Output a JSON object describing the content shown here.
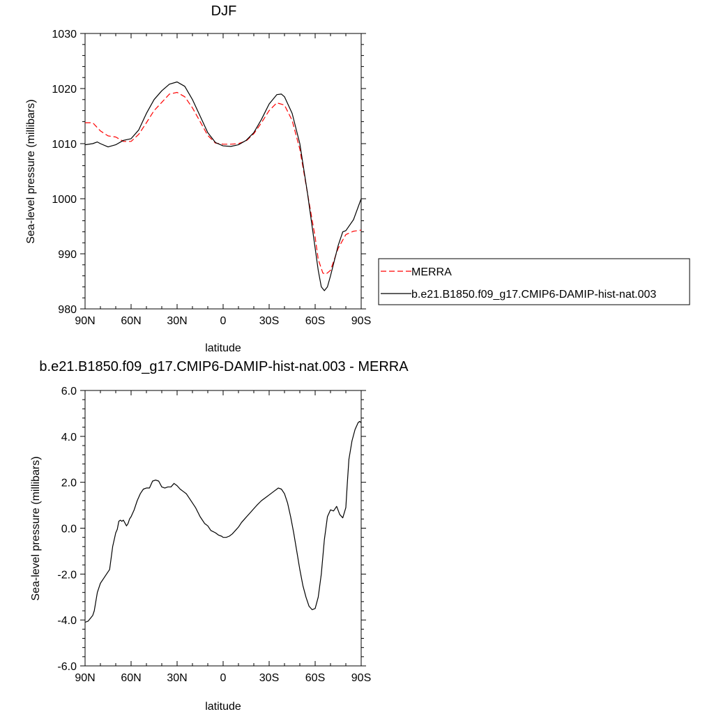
{
  "chart_data": [
    {
      "type": "line",
      "title": "DJF",
      "xlabel": "latitude",
      "ylabel": "Sea-level pressure (millibars)",
      "xlim": [
        90,
        -90
      ],
      "ylim": [
        980,
        1030
      ],
      "xticks": [
        {
          "value": 90,
          "label": "90N"
        },
        {
          "value": 60,
          "label": "60N"
        },
        {
          "value": 30,
          "label": "30N"
        },
        {
          "value": 0,
          "label": "0"
        },
        {
          "value": -30,
          "label": "30S"
        },
        {
          "value": -60,
          "label": "60S"
        },
        {
          "value": -90,
          "label": "90S"
        }
      ],
      "yticks": [
        {
          "value": 980,
          "label": "980"
        },
        {
          "value": 990,
          "label": "990"
        },
        {
          "value": 1000,
          "label": "1000"
        },
        {
          "value": 1010,
          "label": "1010"
        },
        {
          "value": 1020,
          "label": "1020"
        },
        {
          "value": 1030,
          "label": "1030"
        }
      ],
      "legend_position": "right",
      "series": [
        {
          "name": "MERRA",
          "color": "#ff0000",
          "style": "dashed",
          "x": [
            90,
            85,
            80,
            75,
            70,
            65,
            60,
            55,
            50,
            45,
            40,
            35,
            30,
            25,
            20,
            15,
            10,
            5,
            0,
            -5,
            -10,
            -15,
            -20,
            -25,
            -30,
            -35,
            -40,
            -45,
            -50,
            -55,
            -60,
            -62,
            -65,
            -67,
            -70,
            -75,
            -80,
            -85,
            -90
          ],
          "y": [
            1013.8,
            1013.8,
            1012.3,
            1011.4,
            1011.2,
            1010.4,
            1010.4,
            1011.7,
            1013.8,
            1016.0,
            1017.5,
            1019.0,
            1019.3,
            1018.5,
            1016.5,
            1014.0,
            1011.5,
            1010.1,
            1009.9,
            1009.9,
            1010.0,
            1010.5,
            1011.8,
            1013.8,
            1016.0,
            1017.4,
            1017.0,
            1014.2,
            1009.0,
            1001.0,
            993.0,
            989.0,
            986.5,
            986.3,
            987.0,
            991.0,
            993.5,
            994.1,
            994.3
          ]
        },
        {
          "name": "b.e21.B1850.f09_g17.CMIP6-DAMIP-hist-nat.003",
          "color": "#000000",
          "style": "solid",
          "x": [
            90,
            85,
            82,
            80,
            75,
            70,
            65,
            60,
            55,
            50,
            45,
            40,
            35,
            30,
            25,
            20,
            15,
            10,
            5,
            0,
            -5,
            -10,
            -15,
            -20,
            -25,
            -30,
            -35,
            -38,
            -40,
            -45,
            -50,
            -55,
            -60,
            -62,
            -64,
            -66,
            -68,
            -70,
            -75,
            -78,
            -80,
            -85,
            -90
          ],
          "y": [
            1009.8,
            1010.0,
            1010.3,
            1010.0,
            1009.4,
            1009.8,
            1010.6,
            1010.9,
            1012.5,
            1015.5,
            1018.0,
            1019.6,
            1020.8,
            1021.2,
            1020.4,
            1018.0,
            1015.0,
            1012.0,
            1010.2,
            1009.6,
            1009.5,
            1009.8,
            1010.6,
            1012.0,
            1014.4,
            1017.2,
            1018.9,
            1019.0,
            1018.5,
            1015.5,
            1010.0,
            1001.0,
            991.0,
            987.0,
            984.0,
            983.3,
            984.0,
            986.0,
            991.5,
            994.0,
            994.2,
            996.2,
            1000.0
          ]
        }
      ]
    },
    {
      "type": "line",
      "title": "b.e21.B1850.f09_g17.CMIP6-DAMIP-hist-nat.003 - MERRA",
      "xlabel": "latitude",
      "ylabel": "Sea-level pressure (millibars)",
      "xlim": [
        90,
        -90
      ],
      "ylim": [
        -6.0,
        6.0
      ],
      "xticks": [
        {
          "value": 90,
          "label": "90N"
        },
        {
          "value": 60,
          "label": "60N"
        },
        {
          "value": 30,
          "label": "30N"
        },
        {
          "value": 0,
          "label": "0"
        },
        {
          "value": -30,
          "label": "30S"
        },
        {
          "value": -60,
          "label": "60S"
        },
        {
          "value": -90,
          "label": "90S"
        }
      ],
      "yticks": [
        {
          "value": -6,
          "label": "-6.0"
        },
        {
          "value": -4,
          "label": "-4.0"
        },
        {
          "value": -2,
          "label": "-2.0"
        },
        {
          "value": 0,
          "label": "0.0"
        },
        {
          "value": 2,
          "label": "2.0"
        },
        {
          "value": 4,
          "label": "4.0"
        },
        {
          "value": 6,
          "label": "6.0"
        }
      ],
      "series": [
        {
          "color": "#000000",
          "style": "solid",
          "x": [
            90,
            88,
            85,
            84,
            82,
            80,
            78,
            76,
            74,
            72,
            71,
            70,
            69,
            68,
            67,
            66,
            65,
            63,
            62,
            61,
            60,
            58,
            56,
            54,
            52,
            50,
            48,
            46,
            44,
            42,
            40,
            38,
            36,
            34,
            32,
            30,
            28,
            26,
            24,
            22,
            20,
            18,
            15,
            12,
            10,
            8,
            5,
            3,
            1,
            0,
            -2,
            -4,
            -6,
            -8,
            -10,
            -12,
            -14,
            -16,
            -18,
            -20,
            -22,
            -25,
            -28,
            -30,
            -33,
            -36,
            -38,
            -40,
            -42,
            -44,
            -46,
            -48,
            -50,
            -52,
            -54,
            -56,
            -58,
            -60,
            -62,
            -64,
            -66,
            -68,
            -70,
            -72,
            -74,
            -76,
            -78,
            -80,
            -81,
            -82,
            -84,
            -86,
            -88,
            -89,
            -90
          ],
          "y": [
            -4.1,
            -4.05,
            -3.8,
            -3.6,
            -2.8,
            -2.4,
            -2.2,
            -2.0,
            -1.8,
            -0.8,
            -0.5,
            -0.2,
            -0.05,
            0.3,
            0.35,
            0.3,
            0.35,
            0.1,
            0.2,
            0.4,
            0.5,
            0.8,
            1.2,
            1.5,
            1.7,
            1.75,
            1.75,
            2.05,
            2.1,
            2.05,
            1.8,
            1.75,
            1.8,
            1.8,
            1.95,
            1.85,
            1.7,
            1.6,
            1.5,
            1.3,
            1.1,
            0.9,
            0.5,
            0.2,
            0.1,
            -0.1,
            -0.2,
            -0.3,
            -0.35,
            -0.4,
            -0.4,
            -0.35,
            -0.25,
            -0.1,
            0.05,
            0.25,
            0.4,
            0.55,
            0.7,
            0.85,
            1.0,
            1.2,
            1.35,
            1.45,
            1.6,
            1.75,
            1.7,
            1.5,
            1.1,
            0.5,
            -0.2,
            -1.0,
            -1.8,
            -2.5,
            -3.0,
            -3.4,
            -3.55,
            -3.5,
            -3.0,
            -2.0,
            -0.5,
            0.5,
            0.8,
            0.75,
            0.95,
            0.6,
            0.45,
            0.9,
            2.0,
            3.0,
            3.8,
            4.3,
            4.6,
            4.65,
            4.6
          ]
        }
      ]
    }
  ]
}
